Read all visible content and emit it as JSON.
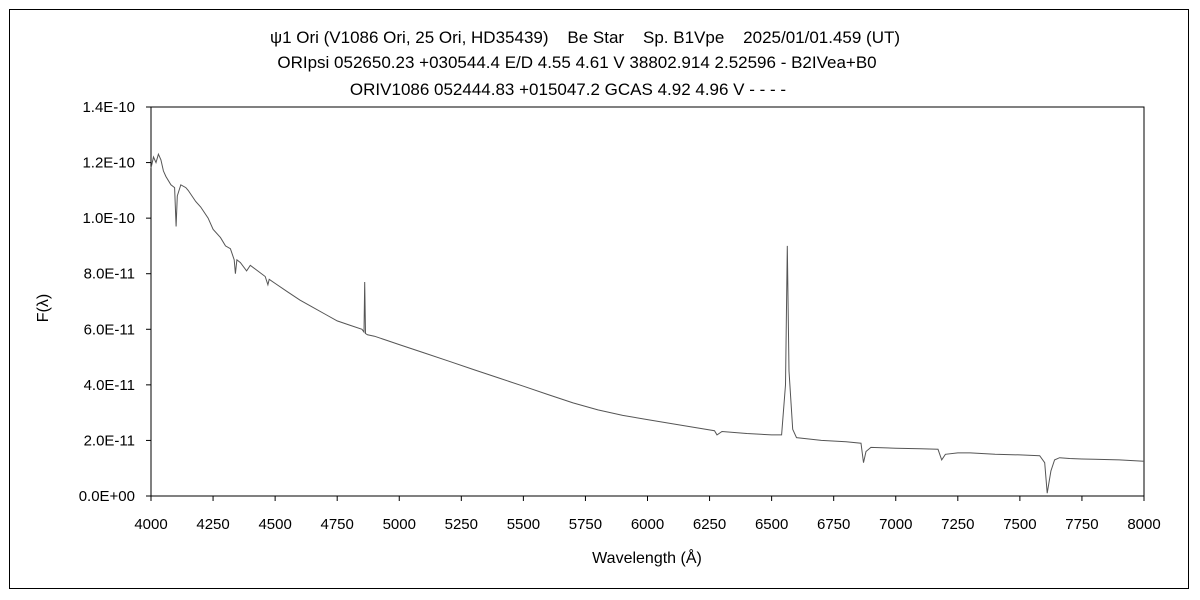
{
  "header": {
    "line1": "ψ1 Ori (V1086 Ori, 25 Ori, HD35439)    Be Star    Sp. B1Vpe    2025/01/01.459 (UT)",
    "line2": "ORIpsi 052650.23 +030544.4 E/D 4.55 4.61 V 38802.914 2.52596 - B2IVea+B0",
    "line3": "ORIV1086 052444.83 +015047.2 GCAS 4.92 4.96 V - - - -"
  },
  "chart_data": {
    "type": "line",
    "xlabel": "Wavelength (Å)",
    "ylabel": "F(λ)",
    "xlim": [
      4000,
      8000
    ],
    "ylim": [
      0,
      1.4e-10
    ],
    "x_ticks": [
      4000,
      4250,
      4500,
      4750,
      5000,
      5250,
      5500,
      5750,
      6000,
      6250,
      6500,
      6750,
      7000,
      7250,
      7500,
      7750,
      8000
    ],
    "y_ticks": [
      0,
      2e-11,
      4e-11,
      6e-11,
      8e-11,
      1e-10,
      1.2e-10,
      1.4e-10
    ],
    "x_tick_labels": [
      "4000",
      "4250",
      "4500",
      "4750",
      "5000",
      "5250",
      "5500",
      "5750",
      "6000",
      "6250",
      "6500",
      "6750",
      "7000",
      "7250",
      "7500",
      "7750",
      "8000"
    ],
    "y_tick_labels": [
      "0.0E+00",
      "2.0E-11",
      "4.0E-11",
      "6.0E-11",
      "8.0E-11",
      "1.0E-10",
      "1.2E-10",
      "1.4E-10"
    ],
    "grid": false,
    "line_color": "#555555",
    "series": [
      {
        "x": [
          4000,
          4010,
          4020,
          4030,
          4040,
          4050,
          4060,
          4080,
          4095,
          4101,
          4106,
          4120,
          4140,
          4150,
          4180,
          4200,
          4230,
          4250,
          4280,
          4300,
          4320,
          4335,
          4340,
          4346,
          4360,
          4385,
          4400,
          4430,
          4460,
          4471,
          4476,
          4500,
          4550,
          4600,
          4650,
          4700,
          4750,
          4800,
          4850,
          4858,
          4861,
          4864,
          4872,
          4900,
          4950,
          5000,
          5100,
          5200,
          5300,
          5400,
          5500,
          5600,
          5700,
          5800,
          5900,
          6000,
          6100,
          6200,
          6270,
          6280,
          6300,
          6400,
          6500,
          6540,
          6556,
          6563,
          6570,
          6585,
          6600,
          6650,
          6700,
          6800,
          6860,
          6870,
          6880,
          6900,
          7000,
          7100,
          7170,
          7185,
          7200,
          7250,
          7300,
          7400,
          7500,
          7580,
          7600,
          7610,
          7625,
          7640,
          7660,
          7700,
          7750,
          7800,
          7900,
          8000
        ],
        "values": [
          1.18e-10,
          1.22e-10,
          1.2e-10,
          1.23e-10,
          1.21e-10,
          1.17e-10,
          1.15e-10,
          1.12e-10,
          1.11e-10,
          9.7e-11,
          1.08e-10,
          1.12e-10,
          1.11e-10,
          1.1e-10,
          1.06e-10,
          1.04e-10,
          1e-10,
          9.6e-11,
          9.3e-11,
          9e-11,
          8.9e-11,
          8.5e-11,
          8e-11,
          8.5e-11,
          8.4e-11,
          8.1e-11,
          8.3e-11,
          8.1e-11,
          7.9e-11,
          7.6e-11,
          7.8e-11,
          7.65e-11,
          7.35e-11,
          7.05e-11,
          6.8e-11,
          6.55e-11,
          6.3e-11,
          6.15e-11,
          6e-11,
          5.9e-11,
          7.7e-11,
          5.85e-11,
          5.8e-11,
          5.75e-11,
          5.6e-11,
          5.45e-11,
          5.15e-11,
          4.85e-11,
          4.55e-11,
          4.25e-11,
          3.95e-11,
          3.65e-11,
          3.35e-11,
          3.1e-11,
          2.9e-11,
          2.75e-11,
          2.6e-11,
          2.45e-11,
          2.35e-11,
          2.2e-11,
          2.32e-11,
          2.25e-11,
          2.2e-11,
          2.2e-11,
          4e-11,
          9e-11,
          4.5e-11,
          2.4e-11,
          2.1e-11,
          2.05e-11,
          2e-11,
          1.95e-11,
          1.9e-11,
          1.2e-11,
          1.6e-11,
          1.75e-11,
          1.72e-11,
          1.7e-11,
          1.68e-11,
          1.3e-11,
          1.5e-11,
          1.55e-11,
          1.55e-11,
          1.5e-11,
          1.48e-11,
          1.45e-11,
          1.2e-11,
          1e-12,
          9e-12,
          1.3e-11,
          1.38e-11,
          1.35e-11,
          1.33e-11,
          1.32e-11,
          1.3e-11,
          1.25e-11
        ]
      }
    ]
  }
}
